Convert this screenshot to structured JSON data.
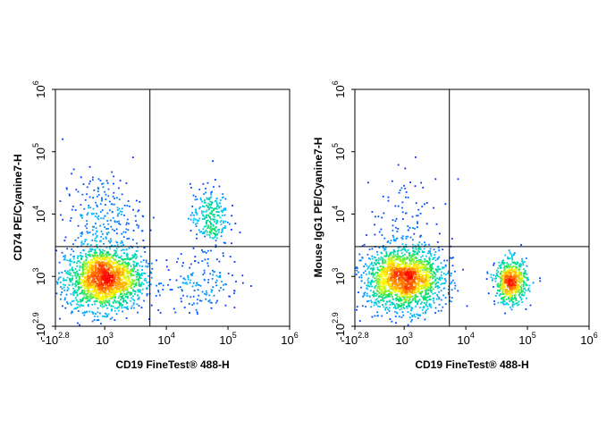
{
  "chart_data": [
    {
      "type": "scatter",
      "subtype": "flow-cytometry-density-dot-plot",
      "xlabel": "CD19  FineTest® 488-H",
      "ylabel": "CD74 PE/Cyanine7-H",
      "x_scale": "biexponential",
      "y_scale": "biexponential",
      "xlim": [
        -631,
        1000000
      ],
      "ylim": [
        -794,
        1000000
      ],
      "x_ticks": [
        {
          "base": "-10",
          "exp": "2.8",
          "value": -631
        },
        {
          "base": "10",
          "exp": "3",
          "value": 1000
        },
        {
          "base": "10",
          "exp": "4",
          "value": 10000
        },
        {
          "base": "10",
          "exp": "5",
          "value": 100000
        },
        {
          "base": "10",
          "exp": "6",
          "value": 1000000
        }
      ],
      "y_ticks": [
        {
          "base": "-10",
          "exp": "2.9",
          "value": -794
        },
        {
          "base": "10",
          "exp": "3",
          "value": 1000
        },
        {
          "base": "10",
          "exp": "4",
          "value": 10000
        },
        {
          "base": "10",
          "exp": "5",
          "value": 100000
        },
        {
          "base": "10",
          "exp": "6",
          "value": 1000000
        }
      ],
      "quadrant_gate": {
        "x": 5400,
        "y": 3000
      },
      "colormap": [
        "#0000ff",
        "#00c8ff",
        "#00e060",
        "#ffff00",
        "#ff8000",
        "#ff0000"
      ],
      "populations": [
        {
          "x": 1000,
          "y": 900,
          "spread_x": 0.32,
          "spread_y": 0.25,
          "count": 1900
        },
        {
          "x": 900,
          "y": 9000,
          "spread_x": 0.32,
          "spread_y": 0.35,
          "count": 240
        },
        {
          "x": 50000,
          "y": 9000,
          "spread_x": 0.15,
          "spread_y": 0.25,
          "count": 260
        },
        {
          "x": 40000,
          "y": 800,
          "spread_x": 0.3,
          "spread_y": 0.25,
          "count": 150
        }
      ]
    },
    {
      "type": "scatter",
      "subtype": "flow-cytometry-density-dot-plot",
      "xlabel": "CD19  FineTest® 488-H",
      "ylabel": "Mouse IgG1 PE/Cyanine7-H",
      "x_scale": "biexponential",
      "y_scale": "biexponential",
      "xlim": [
        -631,
        1000000
      ],
      "ylim": [
        -794,
        1000000
      ],
      "x_ticks": [
        {
          "base": "-10",
          "exp": "2.8",
          "value": -631
        },
        {
          "base": "10",
          "exp": "3",
          "value": 1000
        },
        {
          "base": "10",
          "exp": "4",
          "value": 10000
        },
        {
          "base": "10",
          "exp": "5",
          "value": 100000
        },
        {
          "base": "10",
          "exp": "6",
          "value": 1000000
        }
      ],
      "y_ticks": [
        {
          "base": "-10",
          "exp": "2.9",
          "value": -794
        },
        {
          "base": "10",
          "exp": "3",
          "value": 1000
        },
        {
          "base": "10",
          "exp": "4",
          "value": 10000
        },
        {
          "base": "10",
          "exp": "5",
          "value": 100000
        },
        {
          "base": "10",
          "exp": "6",
          "value": 1000000
        }
      ],
      "quadrant_gate": {
        "x": 5400,
        "y": 3000
      },
      "colormap": [
        "#0000ff",
        "#00c8ff",
        "#00e060",
        "#ffff00",
        "#ff8000",
        "#ff0000"
      ],
      "populations": [
        {
          "x": 1000,
          "y": 900,
          "spread_x": 0.32,
          "spread_y": 0.25,
          "count": 1900
        },
        {
          "x": 1200,
          "y": 9000,
          "spread_x": 0.32,
          "spread_y": 0.35,
          "count": 90
        },
        {
          "x": 55000,
          "y": 800,
          "spread_x": 0.13,
          "spread_y": 0.18,
          "count": 620
        }
      ]
    }
  ]
}
